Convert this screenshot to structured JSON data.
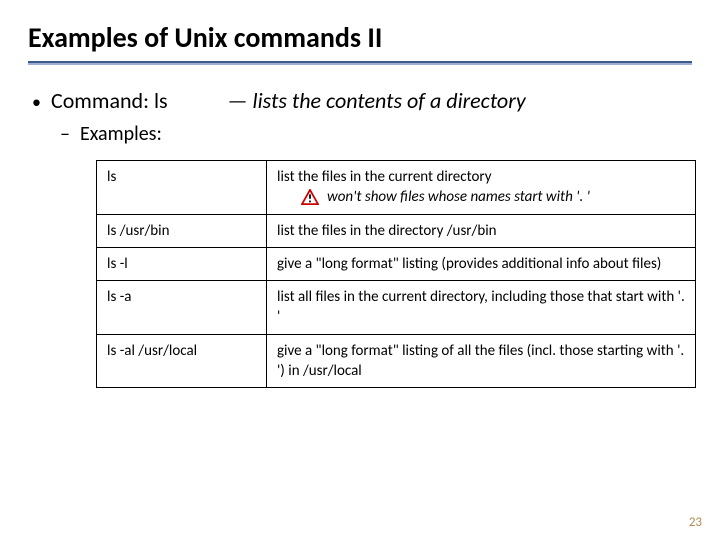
{
  "title": "Examples of Unix commands II",
  "command_line": {
    "prefix": "Command: ",
    "cmd": "ls",
    "dash": "—",
    "desc": "lists the contents of a directory"
  },
  "examples_label": "Examples:",
  "table": {
    "rows": [
      {
        "cmd": "ls",
        "desc": "list the files in the current directory",
        "warning": "won't show files whose names start with '. '"
      },
      {
        "cmd": "ls  /usr/bin",
        "desc": "list the files in the directory /usr/bin"
      },
      {
        "cmd": "ls  -l",
        "desc": "give a \"long format\" listing (provides additional info about files)"
      },
      {
        "cmd": "ls  -a",
        "desc": "list all files in the current directory, including those that start with '. '"
      },
      {
        "cmd": "ls -al /usr/local",
        "desc": "give a \"long format\" listing of all the files (incl. those starting with '. ') in /usr/local"
      }
    ]
  },
  "page_number": "23",
  "colors": {
    "rule_top": "#3b5b8f",
    "rule_bottom": "#9db0cd",
    "pagenum": "#b08b52",
    "warn_fill": "#ffffff",
    "warn_stroke": "#cc0000"
  }
}
